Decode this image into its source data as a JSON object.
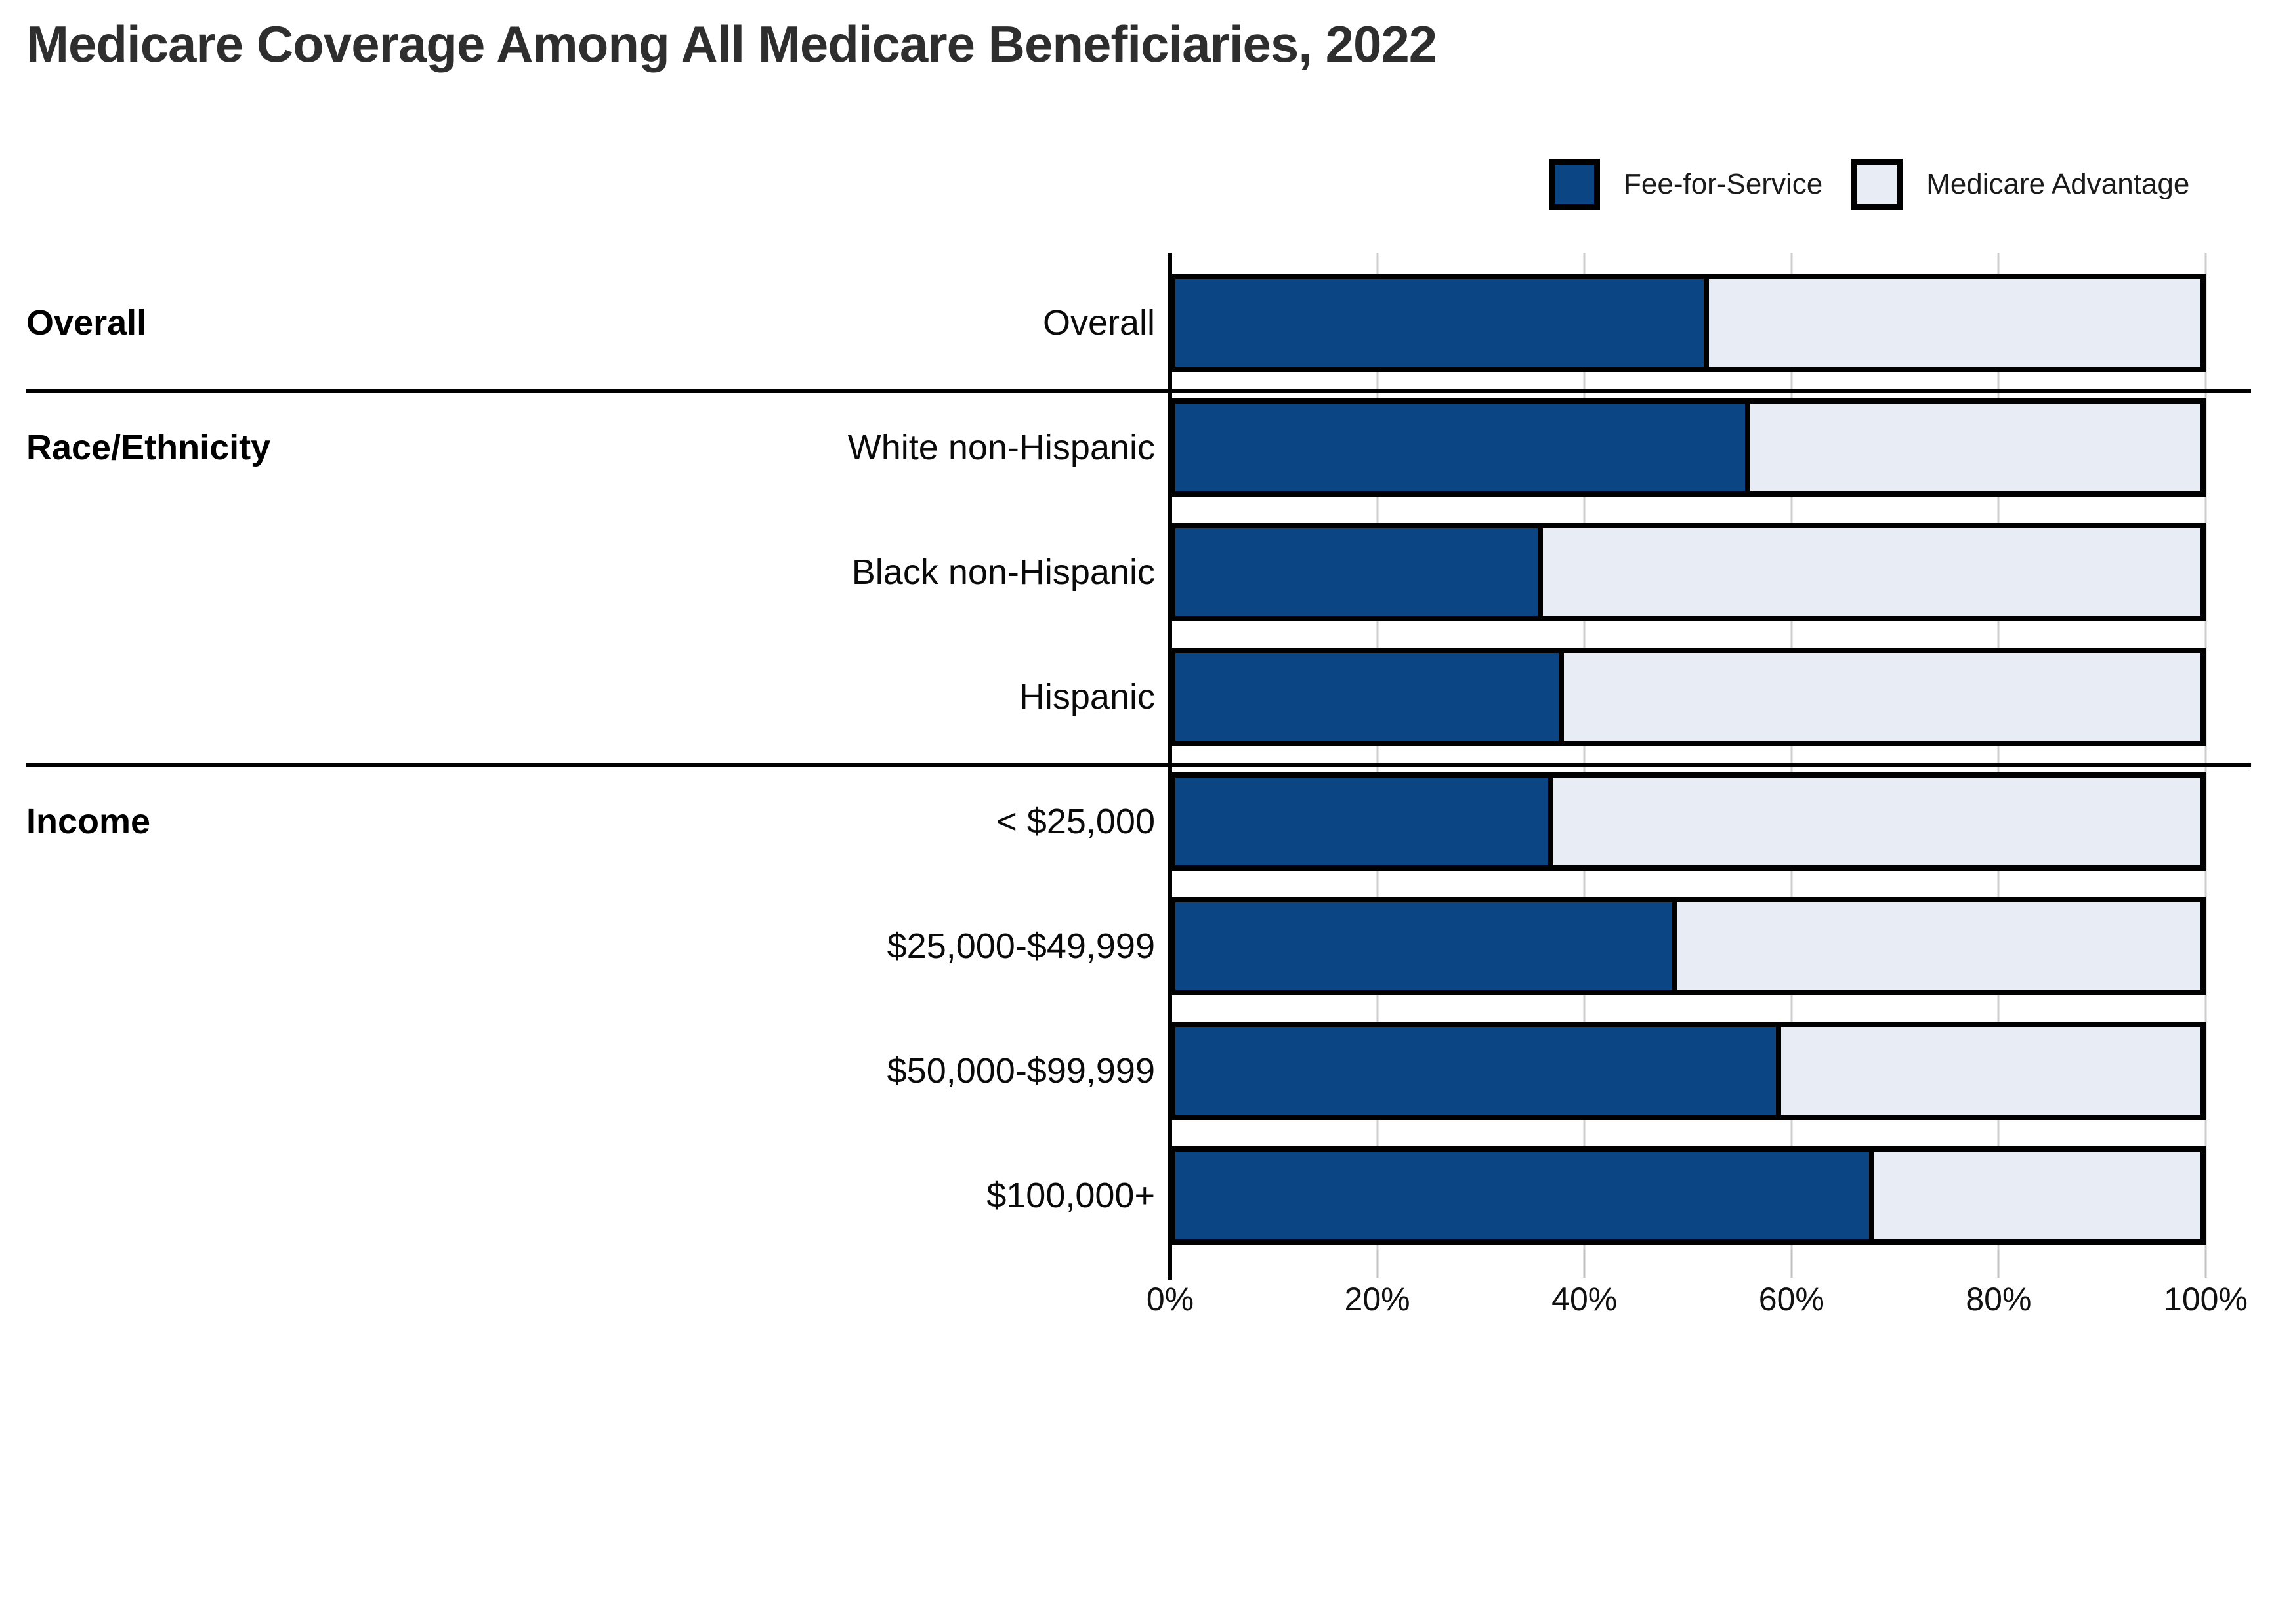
{
  "title": "Medicare Coverage Among All Medicare Beneficiaries, 2022",
  "legend": [
    {
      "label": "Fee-for-Service",
      "color": "#0B4583"
    },
    {
      "label": "Medicare Advantage",
      "color": "#E8ECF5"
    }
  ],
  "colors": {
    "ffs": "#0B4583",
    "ma": "#E8ECF5",
    "segment_border": "#000000",
    "gridline": "#CDCDCD",
    "axis": "#000000",
    "title_text": "#2E2E2E"
  },
  "chart_data": {
    "type": "bar",
    "orientation": "horizontal",
    "stacked_100": true,
    "title": "Medicare Coverage Among All Medicare Beneficiaries, 2022",
    "xlabel": "",
    "ylabel": "",
    "xlim": [
      0,
      100
    ],
    "grid": true,
    "legend_position": "top-right",
    "x_ticks": [
      "0%",
      "20%",
      "40%",
      "60%",
      "80%",
      "100%"
    ],
    "x_tick_values": [
      0,
      20,
      40,
      60,
      80,
      100
    ],
    "categories": [
      "Overall",
      "White non-Hispanic",
      "Black non-Hispanic",
      "Hispanic",
      "< $25,000",
      "$25,000-$49,999",
      "$50,000-$99,999",
      "$100,000+"
    ],
    "groups": [
      {
        "label": "Overall",
        "start": 0
      },
      {
        "label": "Race/Ethnicity",
        "start": 1
      },
      {
        "label": "Income",
        "start": 4
      }
    ],
    "series": [
      {
        "name": "Fee-for-Service",
        "values": [
          52,
          56,
          36,
          38,
          37,
          49,
          59,
          68
        ]
      },
      {
        "name": "Medicare Advantage",
        "values": [
          48,
          44,
          64,
          62,
          63,
          51,
          41,
          32
        ]
      }
    ]
  }
}
